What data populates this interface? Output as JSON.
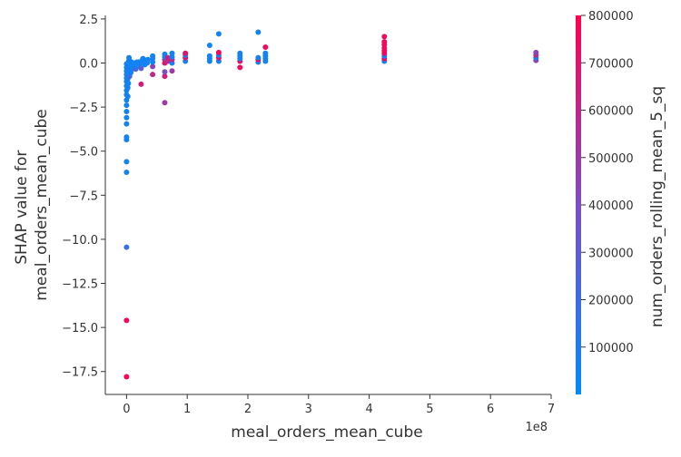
{
  "chart_data": {
    "type": "scatter",
    "xlabel": "meal_orders_mean_cube",
    "ylabel_lines": [
      "SHAP value for",
      "meal_orders_mean_cube"
    ],
    "x_offset_label": "1e8",
    "x_scale": 100000000,
    "xlim": [
      -0.35,
      7.0
    ],
    "ylim": [
      -18.8,
      2.7
    ],
    "x_ticks": [
      0,
      1,
      2,
      3,
      4,
      5,
      6,
      7
    ],
    "x_tick_labels": [
      "0",
      "1",
      "2",
      "3",
      "4",
      "5",
      "6",
      "7"
    ],
    "y_ticks": [
      2.5,
      0.0,
      -2.5,
      -5.0,
      -7.5,
      -10.0,
      -12.5,
      -15.0,
      -17.5
    ],
    "y_tick_labels": [
      "2.5",
      "0.0",
      "−2.5",
      "−5.0",
      "−7.5",
      "−10.0",
      "−12.5",
      "−15.0",
      "−17.5"
    ],
    "colorbar": {
      "label": "num_orders_rolling_mean_5_sq",
      "range": [
        0,
        800000
      ],
      "ticks": [
        100000,
        200000,
        300000,
        400000,
        500000,
        600000,
        700000,
        800000
      ],
      "tick_labels": [
        "100000",
        "200000",
        "300000",
        "400000",
        "500000",
        "600000",
        "700000",
        "800000"
      ],
      "low_color": "#008bfb",
      "high_color": "#ff0051"
    },
    "grid": false,
    "points": [
      {
        "x": 0.0,
        "y": -17.8,
        "c": 780000
      },
      {
        "x": 0.0,
        "y": -14.6,
        "c": 760000
      },
      {
        "x": 0.0,
        "y": -10.45,
        "c": 180000
      },
      {
        "x": 0.0,
        "y": -6.2,
        "c": 60000
      },
      {
        "x": 0.0,
        "y": -5.6,
        "c": 60000
      },
      {
        "x": 0.0,
        "y": -4.35,
        "c": 60000
      },
      {
        "x": 0.0,
        "y": -4.2,
        "c": 60000
      },
      {
        "x": 0.0,
        "y": -3.45,
        "c": 60000
      },
      {
        "x": 0.0,
        "y": -3.1,
        "c": 60000
      },
      {
        "x": 0.0,
        "y": -2.75,
        "c": 60000
      },
      {
        "x": 0.0,
        "y": -2.4,
        "c": 60000
      },
      {
        "x": 0.0,
        "y": -2.1,
        "c": 60000
      },
      {
        "x": 0.0,
        "y": -1.8,
        "c": 60000
      },
      {
        "x": 0.0,
        "y": -1.55,
        "c": 60000
      },
      {
        "x": 0.0,
        "y": -1.3,
        "c": 60000
      },
      {
        "x": 0.0,
        "y": -1.05,
        "c": 60000
      },
      {
        "x": 0.0,
        "y": -0.85,
        "c": 60000
      },
      {
        "x": 0.0,
        "y": -0.65,
        "c": 60000
      },
      {
        "x": 0.0,
        "y": -0.45,
        "c": 60000
      },
      {
        "x": 0.0,
        "y": -0.25,
        "c": 60000
      },
      {
        "x": 0.0,
        "y": -0.05,
        "c": 60000
      },
      {
        "x": 0.02,
        "y": -1.9,
        "c": 60000
      },
      {
        "x": 0.02,
        "y": -1.4,
        "c": 60000
      },
      {
        "x": 0.02,
        "y": -0.9,
        "c": 60000
      },
      {
        "x": 0.02,
        "y": -0.5,
        "c": 60000
      },
      {
        "x": 0.02,
        "y": -0.15,
        "c": 60000
      },
      {
        "x": 0.03,
        "y": -1.15,
        "c": 60000
      },
      {
        "x": 0.03,
        "y": -0.7,
        "c": 60000
      },
      {
        "x": 0.03,
        "y": -0.3,
        "c": 60000
      },
      {
        "x": 0.03,
        "y": 0.05,
        "c": 60000
      },
      {
        "x": 0.04,
        "y": 0.3,
        "c": 60000
      },
      {
        "x": 0.04,
        "y": 0.15,
        "c": 60000
      },
      {
        "x": 0.05,
        "y": -0.75,
        "c": 200000
      },
      {
        "x": 0.05,
        "y": -0.4,
        "c": 60000
      },
      {
        "x": 0.05,
        "y": -0.1,
        "c": 60000
      },
      {
        "x": 0.06,
        "y": -0.25,
        "c": 60000
      },
      {
        "x": 0.06,
        "y": 0.1,
        "c": 60000
      },
      {
        "x": 0.07,
        "y": -0.55,
        "c": 60000
      },
      {
        "x": 0.08,
        "y": -0.15,
        "c": 60000
      },
      {
        "x": 0.08,
        "y": 0.05,
        "c": 60000
      },
      {
        "x": 0.09,
        "y": -0.35,
        "c": 60000
      },
      {
        "x": 0.1,
        "y": -0.05,
        "c": 60000
      },
      {
        "x": 0.1,
        "y": -0.3,
        "c": 60000
      },
      {
        "x": 0.12,
        "y": -0.2,
        "c": 60000
      },
      {
        "x": 0.12,
        "y": 0.0,
        "c": 60000
      },
      {
        "x": 0.14,
        "y": -0.1,
        "c": 60000
      },
      {
        "x": 0.15,
        "y": -0.35,
        "c": 250000
      },
      {
        "x": 0.16,
        "y": -0.15,
        "c": 60000
      },
      {
        "x": 0.17,
        "y": 0.05,
        "c": 60000
      },
      {
        "x": 0.18,
        "y": -0.2,
        "c": 60000
      },
      {
        "x": 0.2,
        "y": -0.1,
        "c": 60000
      },
      {
        "x": 0.2,
        "y": 0.05,
        "c": 60000
      },
      {
        "x": 0.24,
        "y": -1.2,
        "c": 650000
      },
      {
        "x": 0.24,
        "y": -0.3,
        "c": 300000
      },
      {
        "x": 0.25,
        "y": 0.0,
        "c": 60000
      },
      {
        "x": 0.25,
        "y": 0.12,
        "c": 60000
      },
      {
        "x": 0.27,
        "y": 0.25,
        "c": 60000
      },
      {
        "x": 0.28,
        "y": 0.05,
        "c": 60000
      },
      {
        "x": 0.3,
        "y": -0.1,
        "c": 60000
      },
      {
        "x": 0.32,
        "y": 0.15,
        "c": 60000
      },
      {
        "x": 0.34,
        "y": 0.0,
        "c": 60000
      },
      {
        "x": 0.35,
        "y": 0.2,
        "c": 60000
      },
      {
        "x": 0.43,
        "y": -0.65,
        "c": 600000
      },
      {
        "x": 0.43,
        "y": -0.2,
        "c": 450000
      },
      {
        "x": 0.43,
        "y": 0.05,
        "c": 60000
      },
      {
        "x": 0.43,
        "y": 0.25,
        "c": 60000
      },
      {
        "x": 0.43,
        "y": 0.4,
        "c": 60000
      },
      {
        "x": 0.63,
        "y": -2.25,
        "c": 500000
      },
      {
        "x": 0.63,
        "y": -0.75,
        "c": 650000
      },
      {
        "x": 0.63,
        "y": -0.5,
        "c": 400000
      },
      {
        "x": 0.63,
        "y": 0.0,
        "c": 700000
      },
      {
        "x": 0.63,
        "y": 0.2,
        "c": 550000
      },
      {
        "x": 0.63,
        "y": 0.35,
        "c": 60000
      },
      {
        "x": 0.63,
        "y": 0.5,
        "c": 60000
      },
      {
        "x": 0.68,
        "y": 0.1,
        "c": 600000
      },
      {
        "x": 0.68,
        "y": 0.3,
        "c": 650000
      },
      {
        "x": 0.75,
        "y": -0.45,
        "c": 500000
      },
      {
        "x": 0.75,
        "y": 0.0,
        "c": 60000
      },
      {
        "x": 0.75,
        "y": 0.2,
        "c": 600000
      },
      {
        "x": 0.75,
        "y": 0.35,
        "c": 60000
      },
      {
        "x": 0.75,
        "y": 0.55,
        "c": 60000
      },
      {
        "x": 0.97,
        "y": 0.1,
        "c": 60000
      },
      {
        "x": 0.97,
        "y": 0.3,
        "c": 700000
      },
      {
        "x": 0.97,
        "y": 0.45,
        "c": 60000
      },
      {
        "x": 0.97,
        "y": 0.55,
        "c": 700000
      },
      {
        "x": 1.37,
        "y": 0.1,
        "c": 60000
      },
      {
        "x": 1.37,
        "y": 0.25,
        "c": 60000
      },
      {
        "x": 1.37,
        "y": 0.4,
        "c": 60000
      },
      {
        "x": 1.37,
        "y": 1.0,
        "c": 60000
      },
      {
        "x": 1.52,
        "y": 0.1,
        "c": 60000
      },
      {
        "x": 1.52,
        "y": 0.3,
        "c": 700000
      },
      {
        "x": 1.52,
        "y": 0.45,
        "c": 60000
      },
      {
        "x": 1.52,
        "y": 0.6,
        "c": 750000
      },
      {
        "x": 1.52,
        "y": 1.65,
        "c": 60000
      },
      {
        "x": 1.87,
        "y": -0.25,
        "c": 750000
      },
      {
        "x": 1.87,
        "y": 0.1,
        "c": 750000
      },
      {
        "x": 1.87,
        "y": 0.25,
        "c": 60000
      },
      {
        "x": 1.87,
        "y": 0.4,
        "c": 60000
      },
      {
        "x": 1.87,
        "y": 0.55,
        "c": 60000
      },
      {
        "x": 2.17,
        "y": 0.05,
        "c": 60000
      },
      {
        "x": 2.17,
        "y": 0.2,
        "c": 750000
      },
      {
        "x": 2.17,
        "y": 0.3,
        "c": 60000
      },
      {
        "x": 2.17,
        "y": 1.75,
        "c": 60000
      },
      {
        "x": 2.29,
        "y": 0.1,
        "c": 60000
      },
      {
        "x": 2.29,
        "y": 0.25,
        "c": 60000
      },
      {
        "x": 2.29,
        "y": 0.4,
        "c": 60000
      },
      {
        "x": 2.29,
        "y": 0.55,
        "c": 60000
      },
      {
        "x": 2.29,
        "y": 0.9,
        "c": 750000
      },
      {
        "x": 4.25,
        "y": 0.1,
        "c": 60000
      },
      {
        "x": 4.25,
        "y": 0.25,
        "c": 750000
      },
      {
        "x": 4.25,
        "y": 0.4,
        "c": 60000
      },
      {
        "x": 4.25,
        "y": 0.55,
        "c": 750000
      },
      {
        "x": 4.25,
        "y": 0.7,
        "c": 750000
      },
      {
        "x": 4.25,
        "y": 0.85,
        "c": 750000
      },
      {
        "x": 4.25,
        "y": 1.05,
        "c": 750000
      },
      {
        "x": 4.25,
        "y": 1.2,
        "c": 750000
      },
      {
        "x": 4.25,
        "y": 1.5,
        "c": 750000
      },
      {
        "x": 6.75,
        "y": 0.15,
        "c": 450000
      },
      {
        "x": 6.75,
        "y": 0.3,
        "c": 60000
      },
      {
        "x": 6.75,
        "y": 0.45,
        "c": 600000
      },
      {
        "x": 6.75,
        "y": 0.6,
        "c": 450000
      }
    ]
  }
}
